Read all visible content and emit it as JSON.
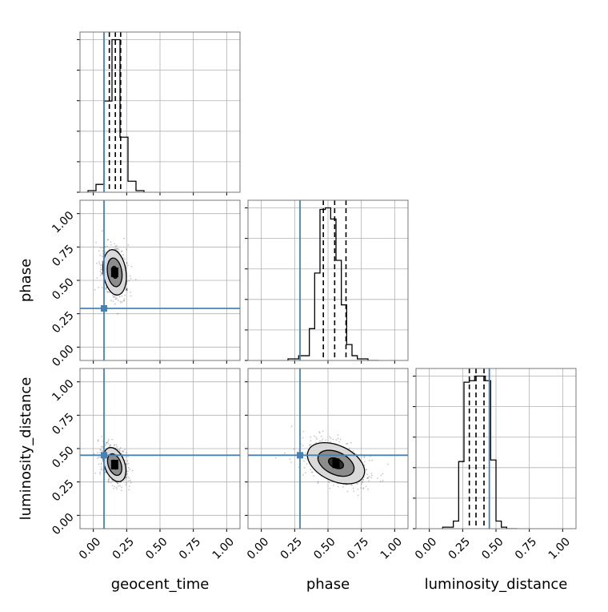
{
  "chart_data": {
    "type": "corner",
    "parameters": [
      "geocent_time",
      "phase",
      "luminosity_distance"
    ],
    "axis_range": [
      -0.1,
      1.1
    ],
    "tick_values": [
      0.0,
      0.25,
      0.5,
      0.75,
      1.0
    ],
    "tick_labels": [
      "0.00",
      "0.25",
      "0.50",
      "0.75",
      "1.00"
    ],
    "grid": true,
    "injection_color": "#4682b4",
    "injection": {
      "geocent_time": 0.08,
      "phase": 0.29,
      "luminosity_distance": 0.45
    },
    "histograms": {
      "geocent_time": {
        "bin_edges": [
          -0.04,
          0.02,
          0.08,
          0.14,
          0.2,
          0.26,
          0.32,
          0.38
        ],
        "counts": [
          0.01,
          0.05,
          0.58,
          0.97,
          0.35,
          0.07,
          0.01
        ],
        "quantiles": [
          0.12,
          0.165,
          0.205
        ]
      },
      "phase": {
        "bin_edges": [
          0.2,
          0.28,
          0.36,
          0.4,
          0.44,
          0.48,
          0.52,
          0.56,
          0.6,
          0.64,
          0.68,
          0.72,
          0.76,
          0.8,
          0.88
        ],
        "counts": [
          0.01,
          0.03,
          0.2,
          0.55,
          0.95,
          0.96,
          0.89,
          0.63,
          0.35,
          0.1,
          0.03,
          0.01,
          0.01,
          0.0
        ],
        "quantiles": [
          0.465,
          0.55,
          0.635
        ]
      },
      "luminosity_distance": {
        "bin_edges": [
          0.1,
          0.18,
          0.22,
          0.26,
          0.3,
          0.34,
          0.38,
          0.42,
          0.46,
          0.5,
          0.54,
          0.58,
          0.66
        ],
        "counts": [
          0.01,
          0.05,
          0.44,
          0.96,
          0.97,
          1.0,
          1.0,
          0.97,
          0.45,
          0.05,
          0.01,
          0.0
        ],
        "quantiles": [
          0.3,
          0.35,
          0.41
        ]
      }
    },
    "contours": {
      "phase|geocent_time": {
        "center": [
          0.16,
          0.56
        ],
        "spread": [
          0.045,
          0.09
        ],
        "tilt_deg": 8,
        "levels": [
          0.5,
          1.2,
          1.9
        ]
      },
      "luminosity_distance|geocent_time": {
        "center": [
          0.16,
          0.38
        ],
        "spread": [
          0.04,
          0.07
        ],
        "tilt_deg": 20,
        "levels": [
          0.5,
          1.2,
          1.9
        ]
      },
      "luminosity_distance|phase": {
        "center": [
          0.56,
          0.39
        ],
        "spread": [
          0.12,
          0.07
        ],
        "tilt_deg": -25,
        "levels": [
          0.5,
          1.2,
          1.9
        ]
      }
    }
  }
}
